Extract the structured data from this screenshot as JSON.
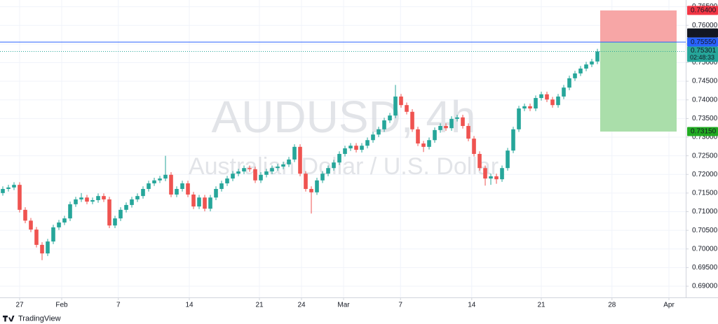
{
  "chart_data": {
    "type": "candlestick",
    "title": "AUDUSD, 4h",
    "subtitle": "Australian Dollar / U.S. Dollar",
    "footer": "TradingView",
    "up_color": "#26a69a",
    "down_color": "#ef5350",
    "grid": true,
    "open": [
      0.715,
      0.7161,
      0.7165,
      0.7172,
      0.7105,
      0.7076,
      0.7052,
      0.7011,
      0.6988,
      0.702,
      0.7058,
      0.7071,
      0.7082,
      0.712,
      0.7133,
      0.7138,
      0.7127,
      0.7131,
      0.7142,
      0.7133,
      0.7063,
      0.7082,
      0.7105,
      0.7118,
      0.7133,
      0.7142,
      0.7161,
      0.7176,
      0.7184,
      0.7189,
      0.7199,
      0.7146,
      0.7161,
      0.7176,
      0.7146,
      0.7114,
      0.7138,
      0.7108,
      0.7138,
      0.7161,
      0.7176,
      0.7189,
      0.7202,
      0.7208,
      0.7217,
      0.7214,
      0.7184,
      0.7199,
      0.7208,
      0.7217,
      0.7221,
      0.7227,
      0.724,
      0.7274,
      0.7202,
      0.7161,
      0.7152,
      0.7184,
      0.7202,
      0.7217,
      0.7232,
      0.7255,
      0.727,
      0.7277,
      0.7266,
      0.7277,
      0.7292,
      0.7307,
      0.7321,
      0.7345,
      0.7358,
      0.7409,
      0.7386,
      0.7368,
      0.7321,
      0.7283,
      0.7274,
      0.7292,
      0.7319,
      0.733,
      0.7324,
      0.7349,
      0.7353,
      0.733,
      0.7296,
      0.7255,
      0.7217,
      0.7189,
      0.7195,
      0.7187,
      0.7217,
      0.7264,
      0.7321,
      0.7377,
      0.7383,
      0.7377,
      0.7405,
      0.7415,
      0.7401,
      0.7386,
      0.7409,
      0.7433,
      0.7458,
      0.7471,
      0.7484,
      0.7495,
      0.7503
    ],
    "high": [
      0.7168,
      0.7172,
      0.7179,
      0.7179,
      0.7112,
      0.7083,
      0.7059,
      0.7018,
      0.7027,
      0.7065,
      0.7078,
      0.7089,
      0.7127,
      0.714,
      0.715,
      0.7145,
      0.7138,
      0.7149,
      0.7149,
      0.714,
      0.7089,
      0.7112,
      0.7125,
      0.714,
      0.7149,
      0.7168,
      0.7183,
      0.7191,
      0.7196,
      0.725,
      0.7206,
      0.7168,
      0.7183,
      0.7183,
      0.7153,
      0.7145,
      0.7145,
      0.7145,
      0.7168,
      0.7183,
      0.7196,
      0.7209,
      0.7215,
      0.7224,
      0.7224,
      0.7221,
      0.7206,
      0.7215,
      0.7224,
      0.7228,
      0.7234,
      0.7247,
      0.7281,
      0.7281,
      0.7209,
      0.7168,
      0.7191,
      0.7209,
      0.7224,
      0.7239,
      0.7262,
      0.7277,
      0.7284,
      0.7284,
      0.7284,
      0.7299,
      0.7314,
      0.7328,
      0.7352,
      0.7365,
      0.744,
      0.7416,
      0.7393,
      0.7375,
      0.7328,
      0.729,
      0.7299,
      0.7326,
      0.7337,
      0.7337,
      0.7356,
      0.736,
      0.736,
      0.7337,
      0.7303,
      0.7262,
      0.7224,
      0.7202,
      0.7202,
      0.7224,
      0.7271,
      0.7328,
      0.7384,
      0.739,
      0.739,
      0.7412,
      0.7422,
      0.7422,
      0.7408,
      0.7416,
      0.744,
      0.7465,
      0.7478,
      0.7491,
      0.7502,
      0.751,
      0.7537
    ],
    "low": [
      0.7143,
      0.7154,
      0.7158,
      0.7098,
      0.7069,
      0.7045,
      0.7004,
      0.697,
      0.6981,
      0.7013,
      0.7051,
      0.7064,
      0.7075,
      0.7113,
      0.7126,
      0.712,
      0.712,
      0.7124,
      0.7126,
      0.7056,
      0.7056,
      0.7075,
      0.7098,
      0.7111,
      0.7126,
      0.7135,
      0.7154,
      0.7169,
      0.7177,
      0.7182,
      0.7139,
      0.7139,
      0.7154,
      0.7139,
      0.7107,
      0.7107,
      0.7101,
      0.7101,
      0.7131,
      0.7154,
      0.7169,
      0.7182,
      0.7195,
      0.7201,
      0.7207,
      0.7177,
      0.7177,
      0.7192,
      0.7201,
      0.721,
      0.7214,
      0.722,
      0.7233,
      0.7195,
      0.7154,
      0.7095,
      0.7145,
      0.7177,
      0.7195,
      0.721,
      0.7225,
      0.7248,
      0.7263,
      0.7259,
      0.7259,
      0.727,
      0.7285,
      0.73,
      0.7314,
      0.7338,
      0.7351,
      0.7379,
      0.7361,
      0.7314,
      0.7276,
      0.726,
      0.7267,
      0.7285,
      0.7312,
      0.7317,
      0.7317,
      0.7342,
      0.7323,
      0.7289,
      0.7248,
      0.721,
      0.717,
      0.7172,
      0.7175,
      0.718,
      0.721,
      0.7257,
      0.7314,
      0.737,
      0.737,
      0.737,
      0.7398,
      0.7394,
      0.7379,
      0.7379,
      0.7402,
      0.7426,
      0.7451,
      0.7464,
      0.7477,
      0.7488,
      0.7496
    ],
    "close": [
      0.7161,
      0.7165,
      0.7172,
      0.7105,
      0.7076,
      0.7052,
      0.7011,
      0.6988,
      0.702,
      0.7058,
      0.7071,
      0.7082,
      0.712,
      0.7133,
      0.7138,
      0.7127,
      0.7131,
      0.7142,
      0.7133,
      0.7063,
      0.7082,
      0.7105,
      0.7118,
      0.7133,
      0.7142,
      0.7161,
      0.7176,
      0.7184,
      0.7189,
      0.7199,
      0.7146,
      0.7161,
      0.7176,
      0.7146,
      0.7114,
      0.7138,
      0.7108,
      0.7138,
      0.7161,
      0.7176,
      0.7189,
      0.7202,
      0.7208,
      0.7217,
      0.7214,
      0.7184,
      0.7199,
      0.7208,
      0.7217,
      0.7221,
      0.7227,
      0.724,
      0.7274,
      0.7202,
      0.7161,
      0.7152,
      0.7184,
      0.7202,
      0.7217,
      0.7232,
      0.7255,
      0.727,
      0.7277,
      0.7266,
      0.7277,
      0.7292,
      0.7307,
      0.7321,
      0.7345,
      0.7358,
      0.7409,
      0.7386,
      0.7368,
      0.7321,
      0.7283,
      0.7274,
      0.7292,
      0.7319,
      0.733,
      0.7324,
      0.7349,
      0.7353,
      0.733,
      0.7296,
      0.7255,
      0.7217,
      0.7189,
      0.7195,
      0.7187,
      0.7217,
      0.7264,
      0.7321,
      0.7377,
      0.7383,
      0.7377,
      0.7405,
      0.7415,
      0.7401,
      0.7386,
      0.7409,
      0.7433,
      0.7458,
      0.7471,
      0.7484,
      0.7495,
      0.7503,
      0.753
    ],
    "xlim": [
      -0.5,
      121.75
    ],
    "xticks": [
      {
        "value": 3,
        "label": "27"
      },
      {
        "value": 10.5,
        "label": "Feb"
      },
      {
        "value": 20.6,
        "label": "7"
      },
      {
        "value": 33.25,
        "label": "14"
      },
      {
        "value": 45.75,
        "label": "21"
      },
      {
        "value": 53.25,
        "label": "24"
      },
      {
        "value": 60.75,
        "label": "Mar"
      },
      {
        "value": 70.9,
        "label": "7"
      },
      {
        "value": 83.6,
        "label": "14"
      },
      {
        "value": 96,
        "label": "21"
      },
      {
        "value": 108.6,
        "label": "28"
      },
      {
        "value": 118.75,
        "label": "Apr"
      }
    ],
    "ylim": [
      0.687,
      0.7668
    ],
    "yticks": [
      {
        "value": 0.69,
        "label": "0.69000"
      },
      {
        "value": 0.695,
        "label": "0.69500"
      },
      {
        "value": 0.7,
        "label": "0.70000"
      },
      {
        "value": 0.705,
        "label": "0.70500"
      },
      {
        "value": 0.71,
        "label": "0.71000"
      },
      {
        "value": 0.715,
        "label": "0.71500"
      },
      {
        "value": 0.72,
        "label": "0.72000"
      },
      {
        "value": 0.725,
        "label": "0.72500"
      },
      {
        "value": 0.73,
        "label": "0.73000"
      },
      {
        "value": 0.735,
        "label": "0.73500"
      },
      {
        "value": 0.74,
        "label": "0.74000"
      },
      {
        "value": 0.745,
        "label": "0.74500"
      },
      {
        "value": 0.75,
        "label": "0.75000"
      },
      {
        "value": 0.755,
        "label": "0.75500"
      },
      {
        "value": 0.76,
        "label": "0.76000"
      },
      {
        "value": 0.765,
        "label": "0.76500"
      }
    ],
    "position": {
      "stop": 0.764,
      "entry": 0.7555,
      "target": 0.7315,
      "stop_color": "#f7a1a1",
      "target_color": "#a5dca5",
      "line_color": "#2962ff"
    },
    "current_price": {
      "value": 0.75301,
      "label": "0.75301",
      "countdown": "02:48:33",
      "color": "#26a69a"
    },
    "price_labels": [
      {
        "value": 0.764,
        "label": "0.76400",
        "color": "#f23645"
      },
      {
        "value": 0.7555,
        "label": "0.75550",
        "color": "#131722"
      },
      {
        "value": 0.7555,
        "label": "0.75550",
        "color": "#2962ff"
      },
      {
        "value": 0.7315,
        "label": "0.73150",
        "color": "#22ab22"
      }
    ]
  }
}
